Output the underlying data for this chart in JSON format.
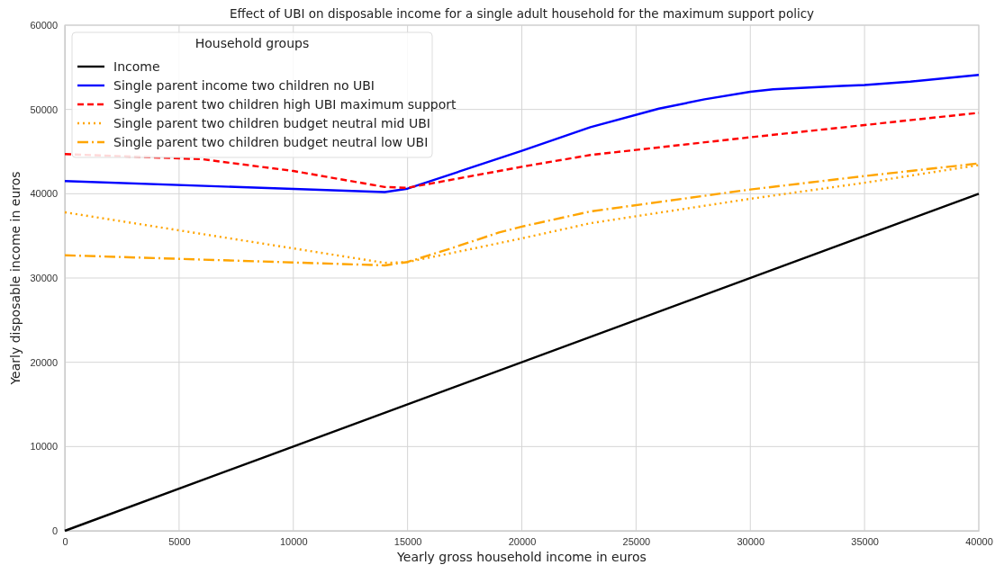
{
  "chart_data": {
    "type": "line",
    "title": "Effect of UBI on disposable income for a single adult household for the maximum support policy",
    "xlabel": "Yearly gross household income in euros",
    "ylabel": "Yearly disposable income in euros",
    "legend_title": "Household groups",
    "legend": "top left",
    "grid": true,
    "xlim": [
      0,
      40000
    ],
    "xticks": [
      0,
      5000,
      10000,
      15000,
      20000,
      25000,
      30000,
      35000,
      40000
    ],
    "ylim": [
      0,
      60000
    ],
    "yticks": [
      0,
      10000,
      20000,
      30000,
      40000,
      50000,
      60000
    ],
    "series": [
      {
        "name": "Income",
        "color": "#000000",
        "line_style": "solid",
        "x": [
          0,
          40000
        ],
        "values": [
          0,
          40000
        ]
      },
      {
        "name": "Single parent income two children no UBI",
        "color": "#0000ff",
        "line_style": "solid",
        "x": [
          0,
          14000,
          15000,
          20000,
          23000,
          26000,
          28000,
          30000,
          31000,
          34000,
          35000,
          37000,
          40000
        ],
        "values": [
          41500,
          40200,
          40600,
          45100,
          47900,
          50100,
          51200,
          52100,
          52400,
          52800,
          52900,
          53300,
          54100
        ]
      },
      {
        "name": "Single parent two children high UBI maximum support",
        "color": "#ff0000",
        "line_style": "dashed",
        "x": [
          0,
          6000,
          10000,
          14000,
          15000,
          20000,
          23000,
          30000,
          40000
        ],
        "values": [
          44700,
          44100,
          42700,
          40800,
          40700,
          43200,
          44600,
          46700,
          49600
        ]
      },
      {
        "name": "Single parent two children budget neutral mid UBI",
        "color": "#ffa500",
        "line_style": "dotted",
        "x": [
          0,
          14000,
          15000,
          17000,
          20000,
          23000,
          30000,
          35000,
          40000
        ],
        "values": [
          37800,
          31800,
          31900,
          33000,
          34700,
          36500,
          39400,
          41300,
          43400
        ]
      },
      {
        "name": "Single parent two children budget neutral low UBI",
        "color": "#ffa500",
        "line_style": "dashdot",
        "x": [
          0,
          14000,
          15000,
          17000,
          19000,
          20000,
          23000,
          30000,
          35000,
          40000
        ],
        "values": [
          32700,
          31500,
          31900,
          33600,
          35400,
          36100,
          37900,
          40500,
          42100,
          43600
        ]
      }
    ]
  }
}
